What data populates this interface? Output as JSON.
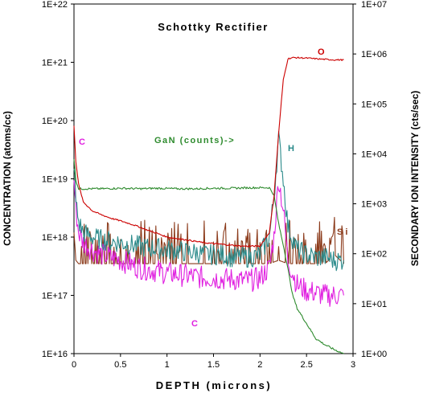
{
  "chart_data": {
    "type": "line",
    "title": "Schottky Rectifier",
    "xlabel": "DEPTH (microns)",
    "ylabel_left": "CONCENTRATION (atoms/cc)",
    "ylabel_right": "SECONDARY ION INTENSITY (cts/sec)",
    "xlim": [
      0,
      3
    ],
    "x_ticks": [
      "0",
      "0.5",
      "1",
      "1.5",
      "2",
      "2.5",
      "3"
    ],
    "ylim_left": [
      1e+16,
      1e+22
    ],
    "ylim_right": [
      1,
      10000000.0
    ],
    "y_scale": "log",
    "y_ticks_left": [
      "1E+16",
      "1E+17",
      "1E+18",
      "1E+19",
      "1E+20",
      "1E+21",
      "1E+22"
    ],
    "y_ticks_right": [
      "1E+00",
      "1E+01",
      "1E+02",
      "1E+03",
      "1E+04",
      "1E+05",
      "1E+06",
      "1E+07"
    ],
    "grid": false,
    "annotations": [
      {
        "text": "O",
        "color": "#cc0000"
      },
      {
        "text": "H",
        "color": "#2a8a8a"
      },
      {
        "text": "GaN (counts)->",
        "color": "#2e8b2e"
      },
      {
        "text": "C",
        "color": "#e020e0"
      },
      {
        "text": "Si",
        "color": "#8b3a1a"
      },
      {
        "text": "C",
        "color": "#e020e0"
      }
    ],
    "series": [
      {
        "name": "O",
        "axis": "left",
        "color": "#cc0000",
        "x": [
          0,
          0.02,
          0.05,
          0.1,
          0.2,
          0.3,
          0.4,
          0.5,
          0.6,
          0.7,
          0.8,
          0.9,
          1.0,
          1.2,
          1.4,
          1.6,
          1.8,
          2.0,
          2.1,
          2.15,
          2.2,
          2.25,
          2.3,
          2.35,
          2.4,
          2.5,
          2.6,
          2.7,
          2.8,
          2.9
        ],
        "y": [
          8e+19,
          2e+19,
          8e+18,
          4e+18,
          2.8e+18,
          2.4e+18,
          2.1e+18,
          1.9e+18,
          1.7e+18,
          1.5e+18,
          1.3e+18,
          1.15e+18,
          1e+18,
          9e+17,
          8e+17,
          7.5e+17,
          7e+17,
          7e+17,
          1.2e+18,
          5e+18,
          6e+19,
          5e+20,
          1.15e+21,
          1.2e+21,
          1.2e+21,
          1.18e+21,
          1.15e+21,
          1.12e+21,
          1.1e+21,
          1.1e+21
        ]
      },
      {
        "name": "GaN",
        "axis": "right",
        "color": "#2e8b2e",
        "x": [
          0,
          0.02,
          0.05,
          0.1,
          0.3,
          0.5,
          0.7,
          0.9,
          1.1,
          1.3,
          1.5,
          1.7,
          1.9,
          2.1,
          2.15,
          2.2,
          2.25,
          2.3,
          2.35,
          2.4,
          2.5,
          2.6,
          2.7,
          2.8,
          2.9
        ],
        "y": [
          8000,
          3000,
          2000,
          2000,
          2000,
          2050,
          2000,
          2050,
          2000,
          2000,
          2050,
          2050,
          2100,
          2100,
          1500,
          400,
          150,
          50,
          15,
          8,
          4,
          2,
          1.5,
          1.2,
          1
        ]
      },
      {
        "name": "H",
        "axis": "left",
        "color": "#2a8a8a",
        "x": [
          0,
          0.02,
          0.05,
          0.1,
          0.2,
          0.3,
          0.4,
          0.5,
          0.6,
          0.7,
          0.8,
          0.9,
          1.0,
          1.1,
          1.2,
          1.3,
          1.4,
          1.5,
          1.6,
          1.7,
          1.8,
          1.9,
          2.0,
          2.1,
          2.15,
          2.2,
          2.25,
          2.3,
          2.4,
          2.5,
          2.6,
          2.7,
          2.8,
          2.9
        ],
        "y": [
          2e+19,
          4e+18,
          1.8e+18,
          1.2e+18,
          1e+18,
          9e+17,
          8.5e+17,
          8e+17,
          7.5e+17,
          7e+17,
          6.5e+17,
          6.5e+17,
          6e+17,
          6e+17,
          5.5e+17,
          5.5e+17,
          5e+17,
          5e+17,
          5e+17,
          4.5e+17,
          4.5e+17,
          4.5e+17,
          5e+17,
          1e+18,
          5e+18,
          5e+19,
          1e+19,
          1.5e+18,
          6e+17,
          5e+17,
          4.5e+17,
          4.5e+17,
          4e+17,
          4e+17
        ]
      },
      {
        "name": "Si",
        "axis": "left",
        "color": "#8b3a1a",
        "x": [
          0,
          0.02,
          0.05,
          0.3,
          0.6,
          0.9,
          1.2,
          1.5,
          1.8,
          2.0,
          2.1,
          2.2,
          2.3,
          2.5,
          2.7,
          2.8,
          2.9
        ],
        "y": [
          1.2e+18,
          4e+17,
          3.5e+17,
          3.5e+17,
          3.5e+17,
          3.5e+17,
          3.5e+17,
          3.5e+17,
          3.5e+17,
          3.5e+17,
          3.5e+17,
          4e+17,
          3.5e+17,
          3.5e+17,
          3.5e+17,
          5e+17,
          3.5e+17
        ]
      },
      {
        "name": "C",
        "axis": "left",
        "color": "#e020e0",
        "x": [
          0,
          0.02,
          0.05,
          0.1,
          0.2,
          0.3,
          0.4,
          0.5,
          0.6,
          0.7,
          0.8,
          0.9,
          1.0,
          1.1,
          1.2,
          1.3,
          1.4,
          1.5,
          1.6,
          1.7,
          1.8,
          1.9,
          2.0,
          2.1,
          2.15,
          2.2,
          2.25,
          2.3,
          2.4,
          2.5,
          2.6,
          2.7,
          2.8,
          2.9
        ],
        "y": [
          1e+19,
          3e+18,
          1.2e+18,
          8e+17,
          6e+17,
          5e+17,
          4.5e+17,
          4e+17,
          3.5e+17,
          3e+17,
          2.8e+17,
          2.6e+17,
          2.4e+17,
          2.3e+17,
          2.2e+17,
          2.1e+17,
          2e+17,
          2e+17,
          1.9e+17,
          1.9e+17,
          1.8e+17,
          1.8e+17,
          2e+17,
          3e+17,
          1e+18,
          1e+19,
          3e+18,
          4e+17,
          1.5e+17,
          1.2e+17,
          1.1e+17,
          1e+17,
          1e+17,
          1e+17
        ]
      }
    ]
  }
}
